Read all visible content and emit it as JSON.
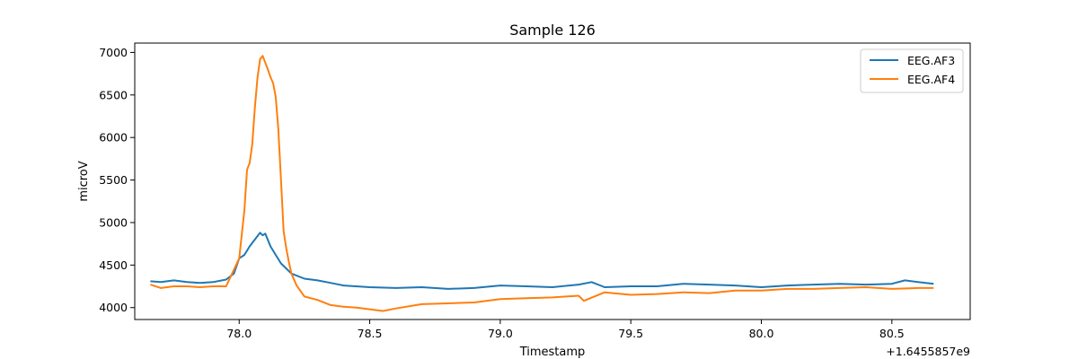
{
  "chart_data": {
    "type": "line",
    "title": "Sample 126",
    "xlabel": "Timestamp",
    "ylabel": "microV",
    "x_offset_label": "+1.6455857e9",
    "xlim": [
      77.6,
      80.8
    ],
    "ylim": [
      3860,
      7110
    ],
    "xticks": [
      78.0,
      78.5,
      79.0,
      79.5,
      80.0,
      80.5
    ],
    "xtick_labels": [
      "78.0",
      "78.5",
      "79.0",
      "79.5",
      "80.0",
      "80.5"
    ],
    "yticks": [
      4000,
      4500,
      5000,
      5500,
      6000,
      6500,
      7000
    ],
    "ytick_labels": [
      "4000",
      "4500",
      "5000",
      "5500",
      "6000",
      "6500",
      "7000"
    ],
    "grid": false,
    "legend_position": "top-right",
    "series": [
      {
        "name": "EEG.AF3",
        "color": "#1f77b4",
        "x": [
          77.66,
          77.7,
          77.75,
          77.8,
          77.85,
          77.9,
          77.95,
          77.98,
          78.0,
          78.02,
          78.04,
          78.06,
          78.08,
          78.09,
          78.1,
          78.12,
          78.14,
          78.16,
          78.18,
          78.2,
          78.25,
          78.3,
          78.35,
          78.4,
          78.5,
          78.6,
          78.7,
          78.8,
          78.9,
          79.0,
          79.1,
          79.2,
          79.3,
          79.35,
          79.4,
          79.5,
          79.6,
          79.7,
          79.8,
          79.9,
          80.0,
          80.1,
          80.2,
          80.3,
          80.4,
          80.5,
          80.55,
          80.6,
          80.66
        ],
        "y": [
          4310,
          4300,
          4320,
          4300,
          4290,
          4300,
          4330,
          4400,
          4580,
          4620,
          4720,
          4800,
          4880,
          4850,
          4870,
          4720,
          4620,
          4520,
          4460,
          4400,
          4340,
          4320,
          4290,
          4260,
          4240,
          4230,
          4240,
          4220,
          4230,
          4260,
          4250,
          4240,
          4270,
          4300,
          4240,
          4250,
          4250,
          4280,
          4270,
          4260,
          4240,
          4260,
          4270,
          4280,
          4270,
          4280,
          4320,
          4300,
          4280
        ]
      },
      {
        "name": "EEG.AF4",
        "color": "#ff7f0e",
        "x": [
          77.66,
          77.7,
          77.75,
          77.8,
          77.85,
          77.9,
          77.95,
          78.0,
          78.02,
          78.03,
          78.04,
          78.05,
          78.06,
          78.07,
          78.08,
          78.09,
          78.1,
          78.11,
          78.12,
          78.13,
          78.14,
          78.15,
          78.16,
          78.17,
          78.18,
          78.19,
          78.2,
          78.22,
          78.25,
          78.3,
          78.35,
          78.4,
          78.45,
          78.5,
          78.55,
          78.6,
          78.7,
          78.8,
          78.9,
          79.0,
          79.1,
          79.2,
          79.3,
          79.32,
          79.4,
          79.5,
          79.6,
          79.7,
          79.8,
          79.9,
          80.0,
          80.1,
          80.2,
          80.3,
          80.4,
          80.5,
          80.6,
          80.66
        ],
        "y": [
          4270,
          4230,
          4250,
          4250,
          4240,
          4250,
          4250,
          4580,
          5150,
          5620,
          5700,
          5920,
          6350,
          6700,
          6920,
          6960,
          6880,
          6800,
          6710,
          6640,
          6480,
          6100,
          5500,
          4900,
          4700,
          4540,
          4400,
          4260,
          4130,
          4090,
          4030,
          4010,
          4000,
          3980,
          3960,
          3990,
          4040,
          4050,
          4060,
          4100,
          4110,
          4120,
          4140,
          4080,
          4180,
          4150,
          4160,
          4180,
          4170,
          4200,
          4200,
          4220,
          4220,
          4230,
          4240,
          4220,
          4230,
          4230
        ]
      }
    ]
  }
}
